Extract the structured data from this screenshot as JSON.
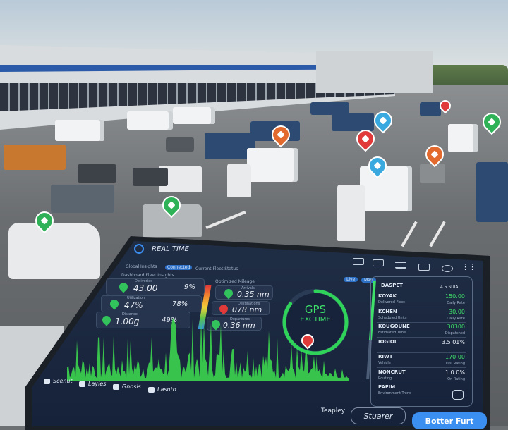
{
  "scene": {
    "pin_colors": [
      "#2fb157",
      "#2fb157",
      "#e36a2e",
      "#e03a3a",
      "#3aa9e0",
      "#e36a2e",
      "#3aa9e0",
      "#2fb157",
      "#e03a3a"
    ]
  },
  "app": {
    "title": "REAL TIME",
    "logo_icon": "globe-icon"
  },
  "toolbar": {
    "icons": [
      "home-icon",
      "truck-icon",
      "menu-icon",
      "battery-icon",
      "eye-icon",
      "grid-icon"
    ]
  },
  "tabs": [
    "Global Insights",
    "Connected",
    "Current Fleet Status"
  ],
  "left_panel": {
    "heading": "Dashboard Fleet Insights",
    "cards": [
      {
        "label": "Deliveries",
        "value": "43.00",
        "percent": "9%"
      },
      {
        "label": "Utilization",
        "value": "47%",
        "percent": "78%"
      },
      {
        "label": "Distance",
        "value": "1.00g",
        "percent": "49%"
      }
    ]
  },
  "mid_panel": {
    "heading": "Optimized Mileage",
    "cards": [
      {
        "label": "Arrivals",
        "value": "0.35 nm",
        "status": "green"
      },
      {
        "label": "Destinations",
        "value": "078 nm",
        "status": "red"
      },
      {
        "label": "Departures",
        "value": "0.36 nm",
        "status": "green"
      }
    ]
  },
  "gauge": {
    "line1": "GPS",
    "line2": "EXCTIME",
    "level": 0.85,
    "color": "#2fd35a"
  },
  "chips": [
    "Live",
    "Map"
  ],
  "right_panel": {
    "heading": "DASPET",
    "heading_value": "4.5 SUIA",
    "rows": [
      {
        "title": "KOYAK",
        "sub": "Delivered Fleet",
        "value": "150.00",
        "value_sub": "Daily Rate",
        "green": true
      },
      {
        "title": "KCHEN",
        "sub": "Scheduled Units",
        "value": "30.00",
        "value_sub": "Daily Rate",
        "green": true
      },
      {
        "title": "KOUGOUNE",
        "sub": "Estimated Time",
        "value": "30300",
        "value_sub": "Dispatched",
        "green": true
      },
      {
        "title": "IOGIOI",
        "sub": "",
        "value": "3.5 01%",
        "value_sub": "",
        "green": false
      },
      {
        "title": "RIWT",
        "sub": "Vehicle",
        "value": "170 00",
        "value_sub": "Dis. Rating",
        "green": true
      },
      {
        "title": "NONCRUT",
        "sub": "Routing",
        "value": "1.0 0%",
        "value_sub": "On Rating",
        "green": false
      },
      {
        "title": "PAFIM",
        "sub": "Environment Trend",
        "value": "",
        "value_sub": "",
        "green": false
      }
    ]
  },
  "nav": [
    {
      "label": "Scenut",
      "icon": "list-icon"
    },
    {
      "label": "Layies",
      "icon": "pie-icon"
    },
    {
      "label": "Gnosis",
      "icon": "hand-icon"
    },
    {
      "label": "Lasnto",
      "icon": "grid-icon"
    }
  ],
  "footer": {
    "text": "Teapley",
    "outline_button": "Stuarer",
    "primary_button": "Botter Furt",
    "primary_color": "#3b8ff0"
  },
  "chart_color": "#3ee04f"
}
